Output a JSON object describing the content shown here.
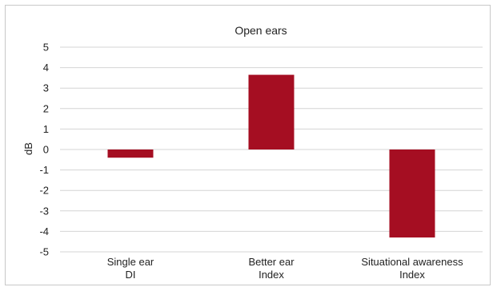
{
  "chart_data": {
    "type": "bar",
    "title": "Open ears",
    "ylabel": "dB",
    "xlabel": "",
    "categories": [
      [
        "Single ear",
        "DI"
      ],
      [
        "Better ear",
        "Index"
      ],
      [
        "Situational awareness",
        "Index"
      ]
    ],
    "values": [
      -0.4,
      3.65,
      -4.3
    ],
    "ylim": [
      -5,
      5
    ],
    "yticks": [
      5,
      4,
      3,
      2,
      1,
      0,
      -1,
      -2,
      -3,
      -4,
      -5
    ],
    "grid": true,
    "legend": "none",
    "bar_color": "#a50e22",
    "grid_color": "#d4d4d4"
  }
}
